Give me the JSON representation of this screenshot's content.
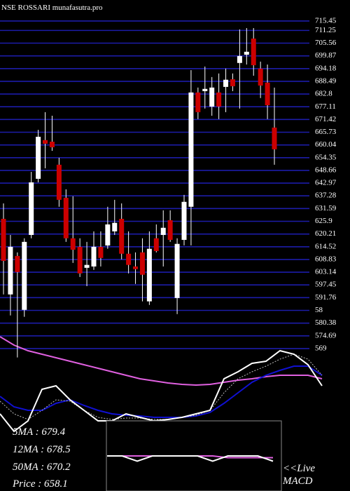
{
  "chart_data": [
    {
      "type": "candlestick",
      "title": "NSE ROSSARI munafasutra.pro",
      "categories": [
        null,
        null,
        null,
        null,
        null,
        null,
        null,
        null,
        null,
        null,
        null,
        null,
        null,
        null,
        null,
        null,
        null,
        null,
        null,
        null,
        null,
        null,
        null,
        null,
        null,
        null,
        null,
        null,
        null,
        null,
        null,
        null,
        null,
        null,
        null,
        null,
        null,
        null,
        null,
        null
      ],
      "open": [
        627.0,
        593.2,
        610.4,
        586.3,
        619.8,
        644.9,
        662.2,
        661.5,
        651.2,
        636.4,
        618.3,
        614.5,
        605.1,
        605.7,
        614.5,
        615.1,
        621.4,
        627.0,
        611.4,
        605.7,
        612.0,
        590.1,
        618.3,
        619.8,
        626.4,
        591.6,
        617.6,
        632.4,
        683.5,
        684.1,
        677.2,
        683.5,
        686.0,
        689.4,
        696.7,
        700.4,
        707.6,
        694.2,
        687.9,
        667.8
      ],
      "high": [
        633.9,
        619.8,
        612.0,
        618.3,
        648.0,
        666.8,
        674.7,
        673.1,
        654.3,
        640.2,
        637.1,
        618.3,
        616.7,
        621.4,
        621.4,
        632.4,
        635.5,
        633.9,
        621.4,
        612.0,
        618.3,
        621.4,
        624.5,
        630.8,
        630.8,
        618.3,
        637.7,
        693.5,
        685.7,
        695.1,
        690.4,
        692.0,
        694.2,
        692.0,
        711.7,
        712.3,
        712.3,
        697.3,
        696.0,
        685.7
      ],
      "low": [
        593.2,
        583.8,
        565.0,
        583.2,
        618.3,
        643.3,
        649.6,
        657.4,
        632.4,
        616.7,
        607.3,
        601.0,
        596.9,
        604.2,
        605.7,
        613.6,
        619.8,
        608.9,
        602.6,
        597.9,
        590.1,
        588.5,
        612.0,
        605.7,
        616.7,
        584.4,
        615.1,
        615.1,
        671.6,
        676.3,
        673.1,
        671.6,
        674.7,
        684.1,
        676.3,
        696.0,
        691.0,
        681.0,
        671.6,
        651.2
      ],
      "close": [
        608.2,
        614.5,
        603.2,
        616.7,
        643.3,
        663.7,
        660.6,
        659.0,
        635.5,
        618.3,
        613.2,
        602.6,
        606.4,
        614.5,
        609.5,
        624.5,
        625.2,
        611.4,
        606.4,
        604.5,
        602.0,
        613.6,
        612.6,
        623.0,
        617.6,
        615.8,
        634.6,
        683.5,
        674.7,
        685.1,
        685.7,
        677.2,
        689.2,
        686.3,
        699.8,
        701.7,
        695.7,
        686.6,
        677.8,
        658.1
      ],
      "up_color": "#ffffff",
      "down_color": "#cc0000",
      "grid": true,
      "grid_color": "#1c1ca8",
      "ylim": [
        564.9,
        724.85
      ],
      "yticks": [
        715.45,
        711.25,
        705.56,
        699.87,
        694.18,
        688.49,
        682.8,
        677.11,
        671.42,
        665.73,
        660.04,
        654.35,
        648.66,
        642.97,
        637.28,
        631.59,
        625.9,
        620.21,
        614.52,
        608.83,
        603.14,
        597.45,
        591.76,
        {
          "value": 586.07,
          "label": "58"
        },
        580.38,
        574.69,
        569
      ],
      "annotations": [
        "5MA : 679.4",
        "12MA : 678.5",
        "50MA : 670.2",
        "Price   : 658.1"
      ]
    },
    {
      "type": "line",
      "categories": [
        null,
        null,
        null,
        null,
        null,
        null,
        null,
        null,
        null,
        null,
        null,
        null,
        null,
        null,
        null,
        null,
        null,
        null,
        null,
        null,
        null,
        null,
        null,
        null
      ],
      "ylim": [
        0,
        220
      ],
      "series": [
        {
          "color": "#e060e0",
          "values": [
            220,
            208,
            200,
            195,
            190,
            185,
            180,
            175,
            170,
            165,
            160,
            157,
            154,
            152,
            151,
            152,
            155,
            158,
            160,
            163,
            165,
            165,
            165,
            160
          ]
        },
        {
          "color": "#1010d0",
          "values": [
            135,
            120,
            115,
            115,
            125,
            130,
            122,
            115,
            110,
            108,
            107,
            105,
            105,
            105,
            107,
            112,
            125,
            140,
            155,
            165,
            172,
            178,
            178,
            165
          ]
        },
        {
          "color": "#bbbbbb",
          "dashed": true,
          "values": [
            128,
            110,
            102,
            115,
            130,
            128,
            115,
            105,
            102,
            104,
            104,
            102,
            102,
            105,
            108,
            115,
            140,
            160,
            170,
            178,
            188,
            195,
            188,
            165
          ]
        },
        {
          "color": "#ffffff",
          "values": [
            110,
            85,
            100,
            145,
            150,
            130,
            115,
            100,
            100,
            110,
            105,
            100,
            102,
            105,
            110,
            115,
            160,
            170,
            182,
            185,
            200,
            195,
            180,
            150
          ]
        }
      ]
    },
    {
      "type": "line",
      "categories": [
        null,
        null,
        null,
        null,
        null,
        null,
        null,
        null,
        null,
        null,
        null,
        null
      ],
      "ylim": [
        -20,
        20
      ],
      "series": [
        {
          "color": "#e060e0",
          "values": [
            0,
            0,
            0,
            0,
            0,
            0,
            0,
            0,
            -1,
            -1,
            -1,
            -1
          ]
        },
        {
          "color": "#ffffff",
          "values": [
            0,
            0,
            -3,
            0,
            0,
            0,
            0,
            -3,
            0,
            0,
            0,
            -3
          ]
        }
      ],
      "annotations": [
        "<<Live",
        "MACD"
      ]
    }
  ]
}
